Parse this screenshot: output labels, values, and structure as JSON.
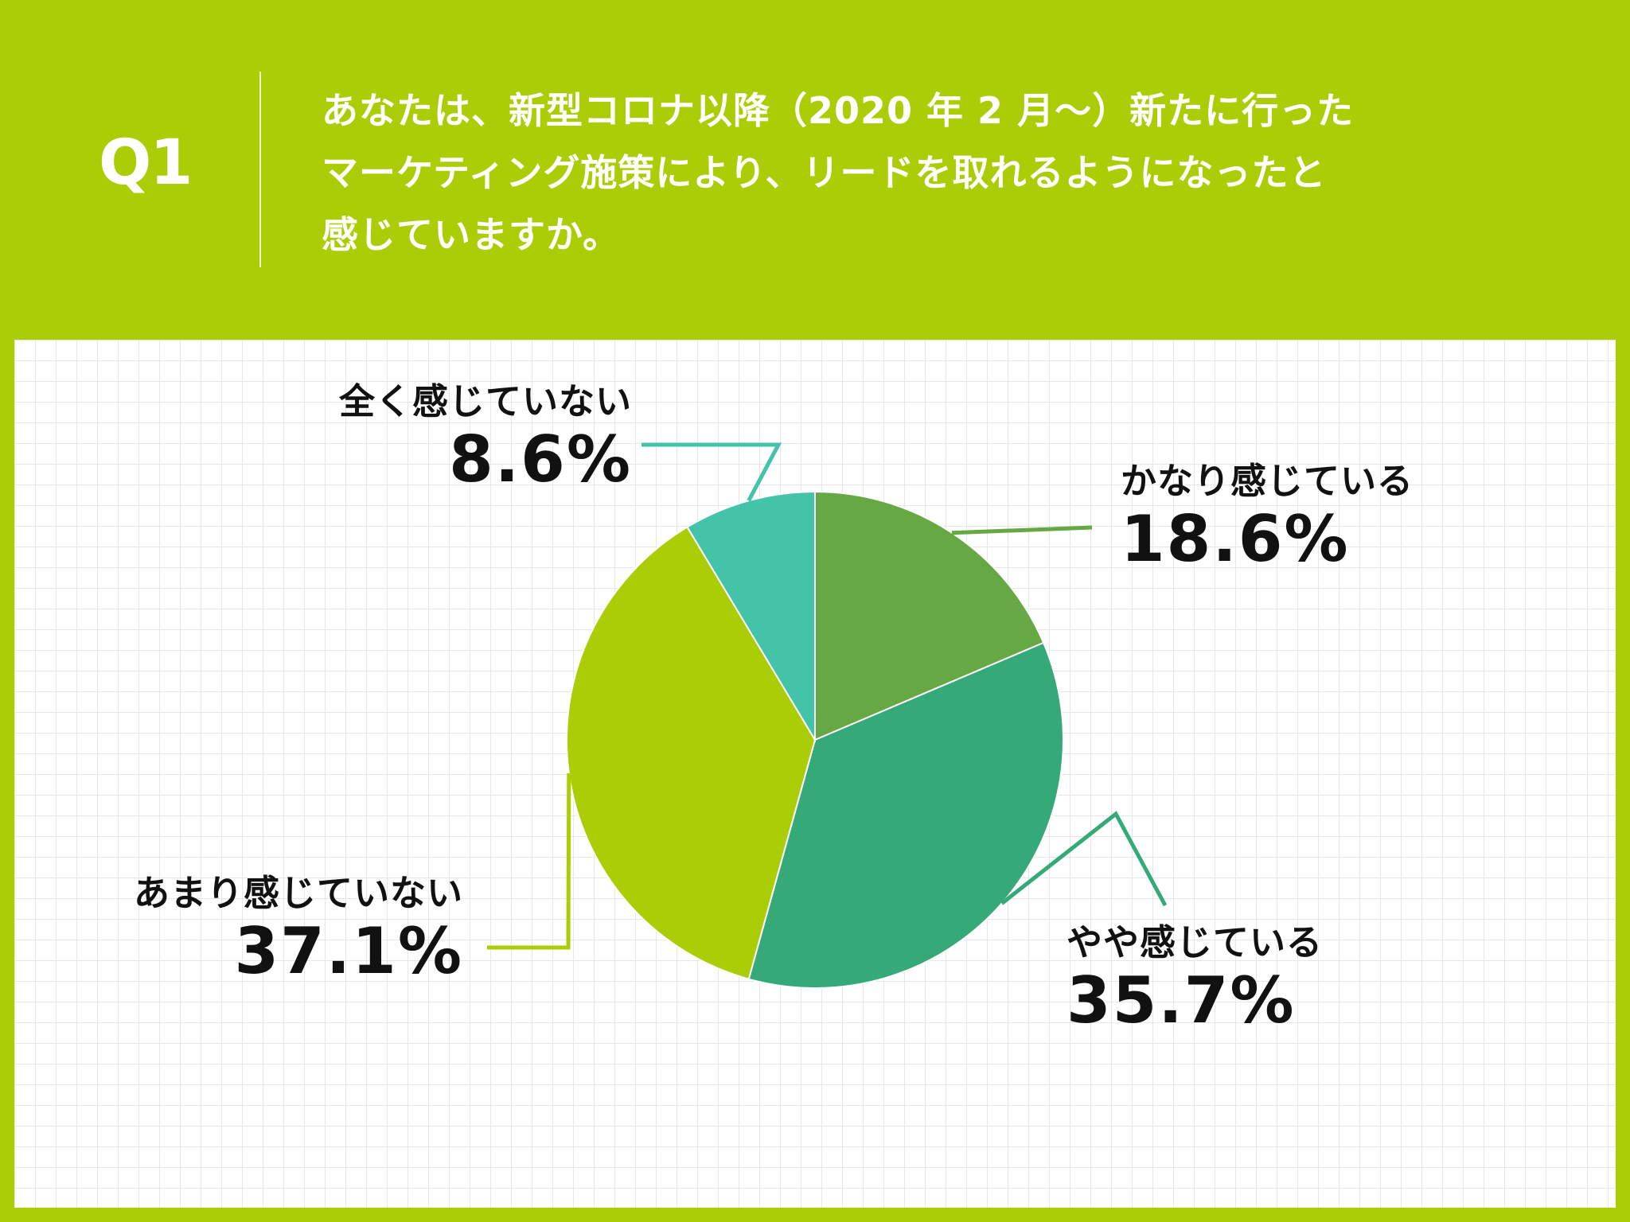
{
  "header": {
    "q_label": "Q1",
    "question": "あなたは、新型コロナ以降（2020 年 2 月～）新たに行った\nマーケティング施策により、リードを取れるようになったと\n感じていますか。"
  },
  "colors": {
    "background": "#abcd05",
    "panel": "#ffffff",
    "grid": "#e5e8e5"
  },
  "chart_data": {
    "type": "pie",
    "start_angle_deg": 0,
    "direction": "clockwise",
    "slices": [
      {
        "label": "かなり感じている",
        "value": 18.6,
        "display": "18.6%",
        "color": "#66a844"
      },
      {
        "label": "やや感じている",
        "value": 35.7,
        "display": "35.7%",
        "color": "#35aa78"
      },
      {
        "label": "あまり感じていない",
        "value": 37.1,
        "display": "37.1%",
        "color": "#abcd05"
      },
      {
        "label": "全く感じていない",
        "value": 8.6,
        "display": "8.6%",
        "color": "#43c3a8"
      }
    ]
  }
}
